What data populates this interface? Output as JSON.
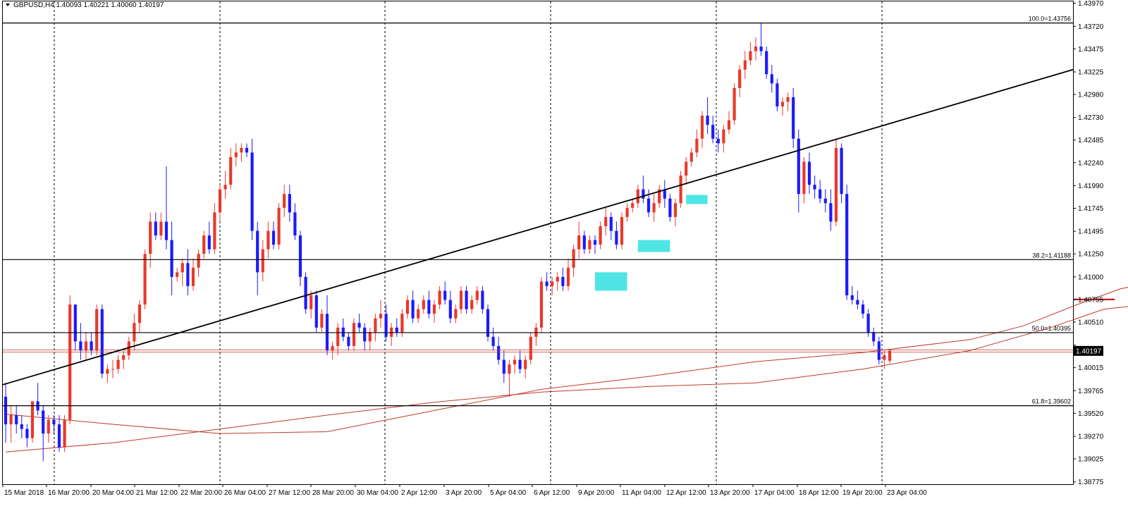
{
  "header": {
    "dropdown_icon": "triangle-down-icon",
    "symbol_label": "GBPUSD,H4",
    "ohlc_text": "1.40093 1.40221 1.40060 1.40197"
  },
  "colors": {
    "bull_candle": "#e8392b",
    "bear_candle": "#1a1aff",
    "ma_line": "#c0392b",
    "trendline": "#000000",
    "fib_line": "#000000",
    "resistance_line": "#b22222",
    "arrow": "#b22222",
    "highlight": "#30e0e0",
    "price_badge_bg": "#000000",
    "price_badge_text": "#ffffff"
  },
  "chart_data": {
    "type": "candlestick",
    "symbol": "GBPUSD",
    "timeframe": "H4",
    "ylim": [
      1.3875,
      1.4399
    ],
    "y_ticks": [
      1.4397,
      1.4372,
      1.43475,
      1.43225,
      1.4298,
      1.4273,
      1.42485,
      1.4224,
      1.4199,
      1.41745,
      1.41495,
      1.4125,
      1.41,
      1.40755,
      1.4051,
      1.4026,
      1.40015,
      1.39765,
      1.3952,
      1.3927,
      1.39025,
      1.38775
    ],
    "y_tick_labels": [
      "1.43970",
      "1.43720",
      "1.43475",
      "1.43225",
      "1.42980",
      "1.42730",
      "1.42485",
      "1.42240",
      "1.41990",
      "1.41745",
      "1.41495",
      "1.41250",
      "1.41000",
      "1.40755",
      "1.40510",
      "",
      "1.40015",
      "1.39765",
      "1.39520",
      "1.39270",
      "1.39025",
      "1.38775"
    ],
    "current_price": 1.40197,
    "current_price_label": "1.40197",
    "x_labels": [
      "15 Mar 2018",
      "16 Mar 20:00",
      "20 Mar 04:00",
      "21 Mar 12:00",
      "22 Mar 20:00",
      "26 Mar 04:00",
      "27 Mar 12:00",
      "28 Mar 20:00",
      "30 Mar 04:00",
      "2 Apr 12:00",
      "3 Apr 20:00",
      "5 Apr 04:00",
      "6 Apr 12:00",
      "9 Apr 20:00",
      "11 Apr 04:00",
      "12 Apr 12:00",
      "13 Apr 20:00",
      "17 Apr 04:00",
      "18 Apr 12:00",
      "19 Apr 20:00",
      "23 Apr 04:00"
    ],
    "fib_levels": [
      {
        "label": "100.0=1.43756",
        "value": 1.43756
      },
      {
        "label": "38.2=1.41188",
        "value": 1.41188
      },
      {
        "label": "50.0=1.40395",
        "value": 1.40395
      },
      {
        "label": "61.8=1.39602",
        "value": 1.39602
      }
    ],
    "resistance_level": 1.40755,
    "trendline": {
      "start": {
        "time_index": 0,
        "price": 1.3983
      },
      "end": {
        "time_index": 226,
        "price": 1.4325
      }
    },
    "moving_averages": [
      {
        "points": [
          [
            0,
            1.3951
          ],
          [
            20,
            1.394
          ],
          [
            40,
            1.393
          ],
          [
            60,
            1.3932
          ],
          [
            80,
            1.3955
          ],
          [
            100,
            1.3978
          ],
          [
            120,
            1.3992
          ],
          [
            140,
            1.4008
          ],
          [
            160,
            1.4018
          ],
          [
            180,
            1.4032
          ],
          [
            190,
            1.4047
          ],
          [
            200,
            1.407
          ],
          [
            208,
            1.4087
          ],
          [
            213,
            1.4093
          ],
          [
            218,
            1.4088
          ]
        ]
      },
      {
        "points": [
          [
            0,
            1.391
          ],
          [
            20,
            1.392
          ],
          [
            40,
            1.3935
          ],
          [
            60,
            1.395
          ],
          [
            80,
            1.3964
          ],
          [
            100,
            1.3975
          ],
          [
            120,
            1.3981
          ],
          [
            140,
            1.3985
          ],
          [
            160,
            1.4
          ],
          [
            180,
            1.402
          ],
          [
            195,
            1.4045
          ],
          [
            205,
            1.4065
          ],
          [
            213,
            1.407
          ],
          [
            218,
            1.4073
          ]
        ]
      }
    ],
    "highlight_boxes": [
      {
        "t0": 110,
        "t1": 116,
        "p_low": 1.4085,
        "p_high": 1.4105
      },
      {
        "t0": 118,
        "t1": 124,
        "p_low": 1.4127,
        "p_high": 1.414
      },
      {
        "t0": 127,
        "t1": 131,
        "p_low": 1.4179,
        "p_high": 1.4189
      }
    ],
    "arrows": [
      {
        "from": {
          "t": 223,
          "p": 1.4022
        },
        "to": {
          "t": 232,
          "p": 1.4038
        }
      },
      {
        "from": {
          "t": 234,
          "p": 1.4033
        },
        "to": {
          "t": 243,
          "p": 1.3962
        }
      }
    ],
    "candles": [
      [
        1.397,
        1.3985,
        1.392,
        1.394
      ],
      [
        1.394,
        1.396,
        1.392,
        1.395
      ],
      [
        1.395,
        1.396,
        1.393,
        1.394
      ],
      [
        1.394,
        1.395,
        1.3925,
        1.3935
      ],
      [
        1.3935,
        1.394,
        1.3915,
        1.3925
      ],
      [
        1.3925,
        1.3965,
        1.392,
        1.3965
      ],
      [
        1.3965,
        1.3985,
        1.395,
        1.3955
      ],
      [
        1.3955,
        1.396,
        1.39,
        1.393
      ],
      [
        1.393,
        1.395,
        1.392,
        1.3945
      ],
      [
        1.3945,
        1.395,
        1.393,
        1.394
      ],
      [
        1.394,
        1.395,
        1.391,
        1.3915
      ],
      [
        1.3915,
        1.395,
        1.391,
        1.3945
      ],
      [
        1.3945,
        1.408,
        1.394,
        1.407
      ],
      [
        1.407,
        1.407,
        1.402,
        1.403
      ],
      [
        1.403,
        1.405,
        1.401,
        1.402
      ],
      [
        1.402,
        1.404,
        1.401,
        1.403
      ],
      [
        1.403,
        1.404,
        1.4015,
        1.402
      ],
      [
        1.402,
        1.407,
        1.4015,
        1.4065
      ],
      [
        1.4065,
        1.407,
        1.399,
        1.3995
      ],
      [
        1.3995,
        1.4005,
        1.3985,
        1.4
      ],
      [
        1.4,
        1.401,
        1.399,
        1.4
      ],
      [
        1.4,
        1.4015,
        1.3995,
        1.401
      ],
      [
        1.401,
        1.402,
        1.4,
        1.4015
      ],
      [
        1.4015,
        1.4035,
        1.401,
        1.403
      ],
      [
        1.403,
        1.406,
        1.402,
        1.405
      ],
      [
        1.405,
        1.4075,
        1.404,
        1.407
      ],
      [
        1.407,
        1.413,
        1.4065,
        1.4125
      ],
      [
        1.4125,
        1.417,
        1.411,
        1.416
      ],
      [
        1.416,
        1.417,
        1.414,
        1.4145
      ],
      [
        1.4145,
        1.417,
        1.414,
        1.416
      ],
      [
        1.416,
        1.422,
        1.413,
        1.414
      ],
      [
        1.414,
        1.416,
        1.408,
        1.41
      ],
      [
        1.41,
        1.411,
        1.4095,
        1.4105
      ],
      [
        1.4105,
        1.412,
        1.409,
        1.4115
      ],
      [
        1.4115,
        1.413,
        1.408,
        1.409
      ],
      [
        1.409,
        1.412,
        1.4085,
        1.411
      ],
      [
        1.411,
        1.413,
        1.41,
        1.4125
      ],
      [
        1.4125,
        1.415,
        1.412,
        1.4145
      ],
      [
        1.4145,
        1.416,
        1.4125,
        1.413
      ],
      [
        1.413,
        1.418,
        1.4125,
        1.417
      ],
      [
        1.417,
        1.42,
        1.416,
        1.4195
      ],
      [
        1.4195,
        1.4215,
        1.4185,
        1.42
      ],
      [
        1.42,
        1.424,
        1.4195,
        1.423
      ],
      [
        1.423,
        1.4245,
        1.422,
        1.4235
      ],
      [
        1.4235,
        1.4245,
        1.4225,
        1.424
      ],
      [
        1.424,
        1.4245,
        1.423,
        1.4235
      ],
      [
        1.4235,
        1.425,
        1.414,
        1.415
      ],
      [
        1.415,
        1.416,
        1.408,
        1.4105
      ],
      [
        1.4105,
        1.414,
        1.4095,
        1.413
      ],
      [
        1.413,
        1.416,
        1.412,
        1.415
      ],
      [
        1.415,
        1.416,
        1.413,
        1.4135
      ],
      [
        1.4135,
        1.418,
        1.413,
        1.4175
      ],
      [
        1.4175,
        1.42,
        1.4165,
        1.419
      ],
      [
        1.419,
        1.42,
        1.416,
        1.417
      ],
      [
        1.417,
        1.418,
        1.414,
        1.4145
      ],
      [
        1.4145,
        1.415,
        1.409,
        1.41
      ],
      [
        1.41,
        1.4105,
        1.406,
        1.4065
      ],
      [
        1.4065,
        1.4085,
        1.4055,
        1.408
      ],
      [
        1.408,
        1.4085,
        1.404,
        1.4045
      ],
      [
        1.4045,
        1.4065,
        1.404,
        1.406
      ],
      [
        1.406,
        1.408,
        1.4015,
        1.402
      ],
      [
        1.402,
        1.403,
        1.401,
        1.4025
      ],
      [
        1.4025,
        1.405,
        1.4015,
        1.4045
      ],
      [
        1.4045,
        1.4055,
        1.403,
        1.4035
      ],
      [
        1.4035,
        1.404,
        1.402,
        1.4025
      ],
      [
        1.4025,
        1.4055,
        1.402,
        1.405
      ],
      [
        1.405,
        1.406,
        1.404,
        1.4045
      ],
      [
        1.4045,
        1.405,
        1.402,
        1.403
      ],
      [
        1.403,
        1.4045,
        1.402,
        1.404
      ],
      [
        1.404,
        1.406,
        1.403,
        1.4055
      ],
      [
        1.4055,
        1.4075,
        1.4045,
        1.406
      ],
      [
        1.406,
        1.407,
        1.403,
        1.4035
      ],
      [
        1.4035,
        1.405,
        1.4025,
        1.4045
      ],
      [
        1.4045,
        1.4055,
        1.4035,
        1.404
      ],
      [
        1.404,
        1.4065,
        1.4035,
        1.406
      ],
      [
        1.406,
        1.408,
        1.4055,
        1.4075
      ],
      [
        1.4075,
        1.4085,
        1.405,
        1.4055
      ],
      [
        1.4055,
        1.407,
        1.405,
        1.4065
      ],
      [
        1.4065,
        1.408,
        1.406,
        1.4075
      ],
      [
        1.4075,
        1.4085,
        1.4055,
        1.406
      ],
      [
        1.406,
        1.4075,
        1.405,
        1.407
      ],
      [
        1.407,
        1.409,
        1.4065,
        1.4085
      ],
      [
        1.4085,
        1.4095,
        1.407,
        1.4075
      ],
      [
        1.4075,
        1.4085,
        1.405,
        1.4055
      ],
      [
        1.4055,
        1.407,
        1.405,
        1.4065
      ],
      [
        1.4065,
        1.409,
        1.406,
        1.4085
      ],
      [
        1.4085,
        1.409,
        1.406,
        1.4065
      ],
      [
        1.4065,
        1.408,
        1.406,
        1.4075
      ],
      [
        1.4075,
        1.409,
        1.407,
        1.4085
      ],
      [
        1.4085,
        1.409,
        1.406,
        1.4065
      ],
      [
        1.4065,
        1.407,
        1.403,
        1.4035
      ],
      [
        1.4035,
        1.4045,
        1.402,
        1.4025
      ],
      [
        1.4025,
        1.4035,
        1.4005,
        1.401
      ],
      [
        1.401,
        1.402,
        1.3985,
        1.3995
      ],
      [
        1.3995,
        1.401,
        1.397,
        1.4005
      ],
      [
        1.4005,
        1.4015,
        1.3995,
        1.401
      ],
      [
        1.401,
        1.402,
        1.3995,
        1.4
      ],
      [
        1.4,
        1.4015,
        1.399,
        1.401
      ],
      [
        1.401,
        1.404,
        1.4005,
        1.4035
      ],
      [
        1.4035,
        1.405,
        1.4025,
        1.4045
      ],
      [
        1.4045,
        1.41,
        1.404,
        1.4095
      ],
      [
        1.4095,
        1.4105,
        1.4085,
        1.409
      ],
      [
        1.409,
        1.41,
        1.408,
        1.4095
      ],
      [
        1.4095,
        1.4105,
        1.4085,
        1.41
      ],
      [
        1.41,
        1.411,
        1.4085,
        1.409
      ],
      [
        1.409,
        1.412,
        1.4085,
        1.411
      ],
      [
        1.411,
        1.4135,
        1.41,
        1.413
      ],
      [
        1.413,
        1.416,
        1.412,
        1.4145
      ],
      [
        1.4145,
        1.415,
        1.4125,
        1.413
      ],
      [
        1.413,
        1.4145,
        1.4125,
        1.414
      ],
      [
        1.414,
        1.4145,
        1.4125,
        1.4135
      ],
      [
        1.4135,
        1.416,
        1.413,
        1.4155
      ],
      [
        1.4155,
        1.4175,
        1.4145,
        1.4165
      ],
      [
        1.4165,
        1.417,
        1.414,
        1.415
      ],
      [
        1.415,
        1.416,
        1.413,
        1.4135
      ],
      [
        1.4135,
        1.417,
        1.413,
        1.4165
      ],
      [
        1.4165,
        1.418,
        1.416,
        1.4175
      ],
      [
        1.4175,
        1.4185,
        1.417,
        1.418
      ],
      [
        1.418,
        1.42,
        1.4175,
        1.4195
      ],
      [
        1.4195,
        1.421,
        1.418,
        1.4185
      ],
      [
        1.4185,
        1.4195,
        1.4165,
        1.417
      ],
      [
        1.417,
        1.419,
        1.416,
        1.418
      ],
      [
        1.418,
        1.42,
        1.4175,
        1.4195
      ],
      [
        1.4195,
        1.4205,
        1.4175,
        1.4185
      ],
      [
        1.4185,
        1.419,
        1.416,
        1.4165
      ],
      [
        1.4165,
        1.4185,
        1.4155,
        1.418
      ],
      [
        1.418,
        1.4215,
        1.4175,
        1.421
      ],
      [
        1.421,
        1.423,
        1.42,
        1.4225
      ],
      [
        1.4225,
        1.424,
        1.422,
        1.4235
      ],
      [
        1.4235,
        1.426,
        1.423,
        1.425
      ],
      [
        1.425,
        1.428,
        1.424,
        1.4275
      ],
      [
        1.4275,
        1.4295,
        1.4255,
        1.4265
      ],
      [
        1.4265,
        1.4275,
        1.4245,
        1.425
      ],
      [
        1.425,
        1.426,
        1.4235,
        1.4245
      ],
      [
        1.4245,
        1.4265,
        1.4235,
        1.426
      ],
      [
        1.426,
        1.428,
        1.4255,
        1.427
      ],
      [
        1.427,
        1.431,
        1.4265,
        1.4305
      ],
      [
        1.4305,
        1.433,
        1.4295,
        1.4325
      ],
      [
        1.4325,
        1.4345,
        1.4315,
        1.4335
      ],
      [
        1.4335,
        1.4355,
        1.433,
        1.4345
      ],
      [
        1.4345,
        1.436,
        1.4335,
        1.435
      ],
      [
        1.435,
        1.4376,
        1.434,
        1.4345
      ],
      [
        1.4345,
        1.435,
        1.4315,
        1.432
      ],
      [
        1.432,
        1.433,
        1.43,
        1.431
      ],
      [
        1.431,
        1.4315,
        1.428,
        1.4285
      ],
      [
        1.4285,
        1.4295,
        1.4275,
        1.429
      ],
      [
        1.429,
        1.43,
        1.428,
        1.4295
      ],
      [
        1.4295,
        1.4305,
        1.424,
        1.425
      ],
      [
        1.425,
        1.426,
        1.417,
        1.419
      ],
      [
        1.419,
        1.423,
        1.418,
        1.4225
      ],
      [
        1.4225,
        1.4235,
        1.419,
        1.42
      ],
      [
        1.42,
        1.421,
        1.4185,
        1.4195
      ],
      [
        1.4195,
        1.4205,
        1.418,
        1.4185
      ],
      [
        1.4185,
        1.4195,
        1.417,
        1.418
      ],
      [
        1.418,
        1.4195,
        1.415,
        1.416
      ],
      [
        1.416,
        1.425,
        1.4155,
        1.424
      ],
      [
        1.424,
        1.4245,
        1.418,
        1.419
      ],
      [
        1.419,
        1.42,
        1.4075,
        1.408
      ],
      [
        1.408,
        1.409,
        1.407,
        1.4075
      ],
      [
        1.4075,
        1.4085,
        1.4065,
        1.407
      ],
      [
        1.407,
        1.4075,
        1.4055,
        1.406
      ],
      [
        1.406,
        1.4065,
        1.4035,
        1.404
      ],
      [
        1.404,
        1.4045,
        1.4025,
        1.403
      ],
      [
        1.403,
        1.4035,
        1.4005,
        1.401
      ],
      [
        1.401,
        1.402,
        1.4,
        1.4015
      ],
      [
        1.4009,
        1.4022,
        1.4006,
        1.402
      ]
    ]
  }
}
